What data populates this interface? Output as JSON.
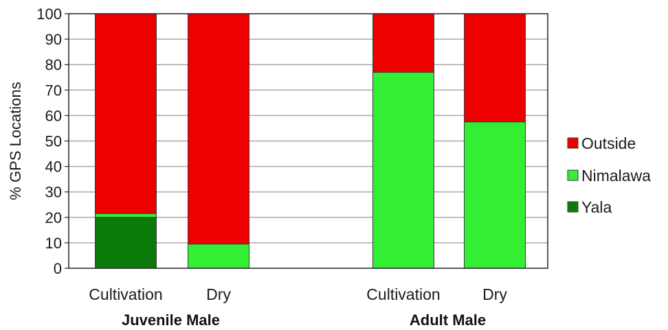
{
  "chart_data": {
    "type": "bar",
    "stacked": true,
    "ylabel": "% GPS Locations",
    "ylim": [
      0,
      100
    ],
    "yticks": [
      0,
      10,
      20,
      30,
      40,
      50,
      60,
      70,
      80,
      90,
      100
    ],
    "grid": true,
    "legend_position": "right",
    "groups": [
      "Juvenile Male",
      "Adult Male"
    ],
    "categories": [
      "Cultivation",
      "Dry",
      "Cultivation",
      "Dry"
    ],
    "category_groups": [
      0,
      0,
      1,
      1
    ],
    "series": [
      {
        "name": "Yala",
        "color": "#0a7a0a",
        "values": [
          20,
          0,
          0,
          0
        ]
      },
      {
        "name": "Nimalawa",
        "color": "#33ee33",
        "values": [
          1.5,
          9.5,
          77,
          57.5
        ]
      },
      {
        "name": "Outside",
        "color": "#ee0000",
        "values": [
          78.5,
          90.5,
          23,
          42.5
        ]
      }
    ],
    "legend_order": [
      "Outside",
      "Nimalawa",
      "Yala"
    ]
  }
}
